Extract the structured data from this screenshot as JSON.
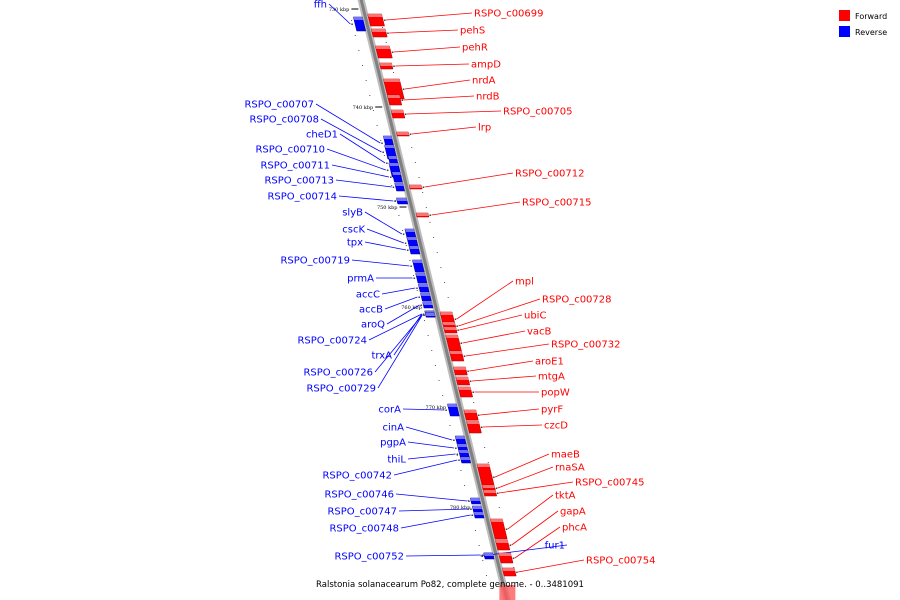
{
  "caption": "Ralstonia solanacearum Po82, complete genome. - 0..3481091",
  "colors": {
    "forward": "#ff0000",
    "reverse": "#0000ff",
    "backbone": "#808080"
  },
  "legend": [
    {
      "label": "Forward",
      "color": "#ff0000"
    },
    {
      "label": "Reverse",
      "color": "#0000ff"
    }
  ],
  "ticks": [
    "730 kbp",
    "740 kbp",
    "750 kbp",
    "760 kbp",
    "770 kbp",
    "780 kbp"
  ],
  "genes": [
    {
      "name": "ffh",
      "strand": "reverse"
    },
    {
      "name": "RSPO_c00699",
      "strand": "forward"
    },
    {
      "name": "pehS",
      "strand": "forward"
    },
    {
      "name": "pehR",
      "strand": "forward"
    },
    {
      "name": "ampD",
      "strand": "forward"
    },
    {
      "name": "nrdA",
      "strand": "forward"
    },
    {
      "name": "nrdB",
      "strand": "forward"
    },
    {
      "name": "RSPO_c00705",
      "strand": "forward"
    },
    {
      "name": "RSPO_c00707",
      "strand": "reverse"
    },
    {
      "name": "RSPO_c00708",
      "strand": "reverse"
    },
    {
      "name": "lrp",
      "strand": "forward"
    },
    {
      "name": "cheD1",
      "strand": "reverse"
    },
    {
      "name": "RSPO_c00710",
      "strand": "reverse"
    },
    {
      "name": "RSPO_c00711",
      "strand": "reverse"
    },
    {
      "name": "RSPO_c00712",
      "strand": "forward"
    },
    {
      "name": "RSPO_c00713",
      "strand": "reverse"
    },
    {
      "name": "RSPO_c00714",
      "strand": "reverse"
    },
    {
      "name": "RSPO_c00715",
      "strand": "forward"
    },
    {
      "name": "slyB",
      "strand": "reverse"
    },
    {
      "name": "cscK",
      "strand": "reverse"
    },
    {
      "name": "tpx",
      "strand": "reverse"
    },
    {
      "name": "RSPO_c00719",
      "strand": "reverse"
    },
    {
      "name": "prmA",
      "strand": "reverse"
    },
    {
      "name": "mpl",
      "strand": "forward"
    },
    {
      "name": "accC",
      "strand": "reverse"
    },
    {
      "name": "RSPO_c00728",
      "strand": "forward"
    },
    {
      "name": "accB",
      "strand": "reverse"
    },
    {
      "name": "ubiC",
      "strand": "forward"
    },
    {
      "name": "aroQ",
      "strand": "reverse"
    },
    {
      "name": "vacB",
      "strand": "forward"
    },
    {
      "name": "RSPO_c00724",
      "strand": "reverse"
    },
    {
      "name": "RSPO_c00732",
      "strand": "forward"
    },
    {
      "name": "trxA",
      "strand": "reverse"
    },
    {
      "name": "aroE1",
      "strand": "forward"
    },
    {
      "name": "RSPO_c00726",
      "strand": "reverse"
    },
    {
      "name": "mtgA",
      "strand": "forward"
    },
    {
      "name": "RSPO_c00729",
      "strand": "reverse"
    },
    {
      "name": "popW",
      "strand": "forward"
    },
    {
      "name": "corA",
      "strand": "reverse"
    },
    {
      "name": "pyrF",
      "strand": "forward"
    },
    {
      "name": "czcD",
      "strand": "forward"
    },
    {
      "name": "cinA",
      "strand": "reverse"
    },
    {
      "name": "pgpA",
      "strand": "reverse"
    },
    {
      "name": "thiL",
      "strand": "reverse"
    },
    {
      "name": "maeB",
      "strand": "forward"
    },
    {
      "name": "rnaSA",
      "strand": "forward"
    },
    {
      "name": "RSPO_c00742",
      "strand": "reverse"
    },
    {
      "name": "RSPO_c00745",
      "strand": "forward"
    },
    {
      "name": "RSPO_c00746",
      "strand": "reverse"
    },
    {
      "name": "tktA",
      "strand": "forward"
    },
    {
      "name": "RSPO_c00747",
      "strand": "reverse"
    },
    {
      "name": "gapA",
      "strand": "forward"
    },
    {
      "name": "RSPO_c00748",
      "strand": "reverse"
    },
    {
      "name": "phcA",
      "strand": "forward"
    },
    {
      "name": "fur1",
      "strand": "reverse"
    },
    {
      "name": "RSPO_c00752",
      "strand": "reverse"
    },
    {
      "name": "RSPO_c00754",
      "strand": "forward"
    }
  ]
}
